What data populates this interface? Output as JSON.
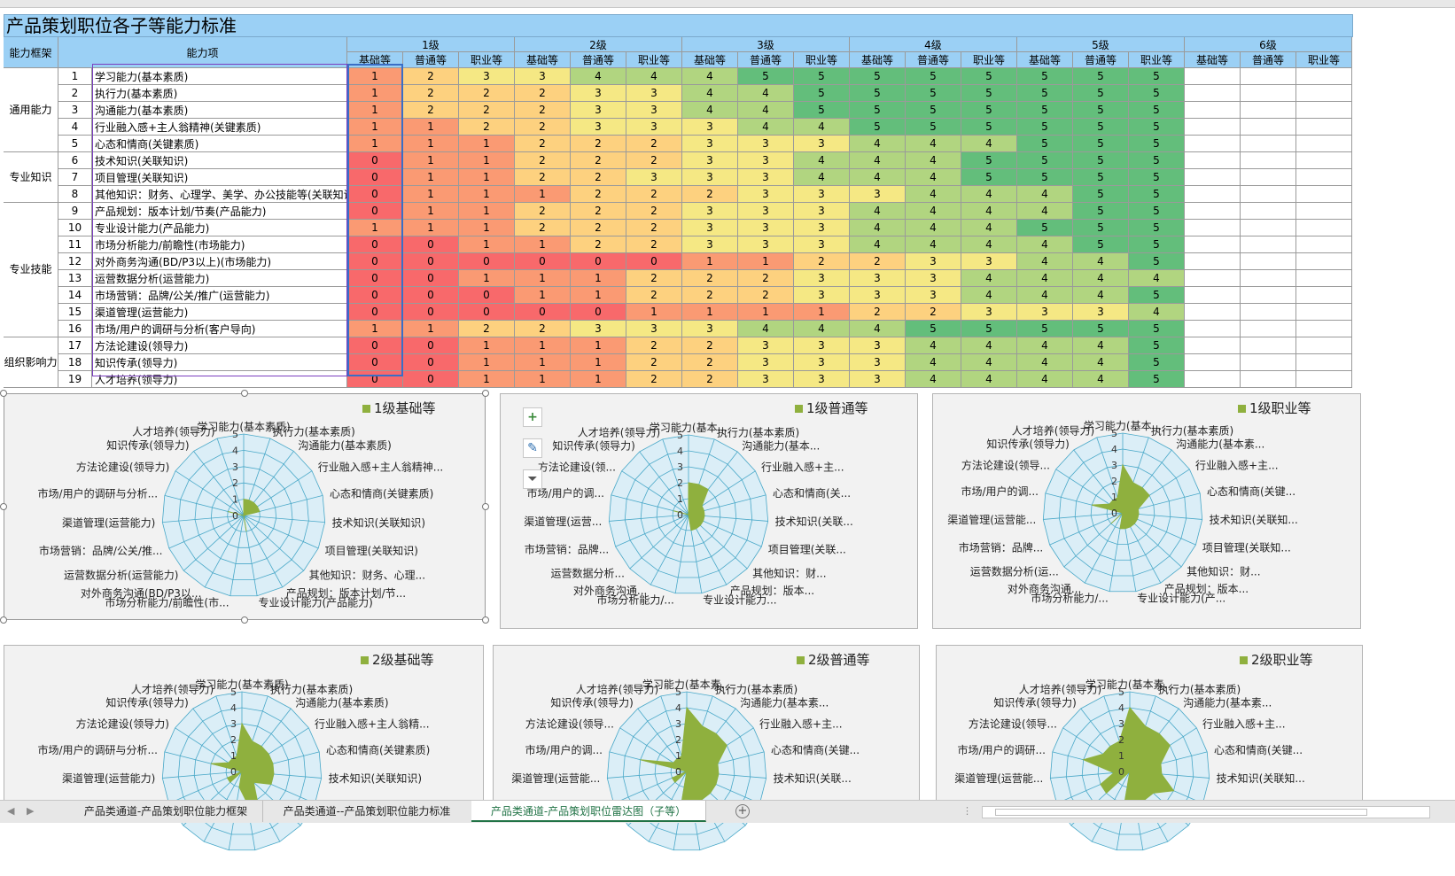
{
  "title": "产品策划职位各子等能力标准",
  "headers": {
    "framework": "能力框架",
    "item": "能力项",
    "levels": [
      "1级",
      "2级",
      "3级",
      "4级",
      "5级",
      "6级"
    ],
    "grades": [
      "基础等",
      "普通等",
      "职业等"
    ]
  },
  "groups": [
    {
      "label": "通用能力",
      "rows": 5
    },
    {
      "label": "专业知识",
      "rows": 3
    },
    {
      "label": "专业技能",
      "rows": 8
    },
    {
      "label": "组织影响力",
      "rows": 3
    }
  ],
  "rows": [
    {
      "no": "1",
      "name": "学习能力(基本素质)",
      "vals": [
        1,
        2,
        3,
        3,
        4,
        4,
        4,
        5,
        5,
        5,
        5,
        5,
        5,
        5,
        5
      ]
    },
    {
      "no": "2",
      "name": "执行力(基本素质)",
      "vals": [
        1,
        2,
        2,
        2,
        3,
        3,
        4,
        4,
        5,
        5,
        5,
        5,
        5,
        5,
        5
      ]
    },
    {
      "no": "3",
      "name": "沟通能力(基本素质)",
      "vals": [
        1,
        2,
        2,
        2,
        3,
        3,
        4,
        4,
        5,
        5,
        5,
        5,
        5,
        5,
        5
      ]
    },
    {
      "no": "4",
      "name": "行业融入感+主人翁精神(关键素质)",
      "vals": [
        1,
        1,
        2,
        2,
        3,
        3,
        3,
        4,
        4,
        5,
        5,
        5,
        5,
        5,
        5
      ]
    },
    {
      "no": "5",
      "name": "心态和情商(关键素质)",
      "vals": [
        1,
        1,
        1,
        2,
        2,
        2,
        3,
        3,
        3,
        4,
        4,
        4,
        5,
        5,
        5
      ]
    },
    {
      "no": "6",
      "name": "技术知识(关联知识)",
      "vals": [
        0,
        1,
        1,
        2,
        2,
        2,
        3,
        3,
        4,
        4,
        4,
        5,
        5,
        5,
        5
      ]
    },
    {
      "no": "7",
      "name": "项目管理(关联知识)",
      "vals": [
        0,
        1,
        1,
        2,
        2,
        3,
        3,
        3,
        4,
        4,
        4,
        5,
        5,
        5,
        5
      ]
    },
    {
      "no": "8",
      "name": "其他知识：财务、心理学、美学、办公技能等(关联知识)",
      "vals": [
        0,
        1,
        1,
        1,
        2,
        2,
        2,
        3,
        3,
        3,
        4,
        4,
        4,
        5,
        5
      ]
    },
    {
      "no": "9",
      "name": "产品规划：版本计划/节奏(产品能力)",
      "vals": [
        0,
        1,
        1,
        2,
        2,
        2,
        3,
        3,
        3,
        4,
        4,
        4,
        4,
        5,
        5
      ]
    },
    {
      "no": "10",
      "name": "专业设计能力(产品能力)",
      "vals": [
        1,
        1,
        1,
        2,
        2,
        2,
        3,
        3,
        3,
        4,
        4,
        4,
        5,
        5,
        5
      ]
    },
    {
      "no": "11",
      "name": "市场分析能力/前瞻性(市场能力)",
      "vals": [
        0,
        0,
        1,
        1,
        2,
        2,
        3,
        3,
        3,
        4,
        4,
        4,
        4,
        5,
        5
      ]
    },
    {
      "no": "12",
      "name": "对外商务沟通(BD/P3以上)(市场能力)",
      "vals": [
        0,
        0,
        0,
        0,
        0,
        0,
        1,
        1,
        2,
        2,
        3,
        3,
        4,
        4,
        5
      ]
    },
    {
      "no": "13",
      "name": "运营数据分析(运营能力)",
      "vals": [
        0,
        0,
        1,
        1,
        1,
        2,
        2,
        2,
        3,
        3,
        3,
        4,
        4,
        4,
        4
      ]
    },
    {
      "no": "14",
      "name": "市场营销：品牌/公关/推广(运营能力)",
      "vals": [
        0,
        0,
        0,
        1,
        1,
        2,
        2,
        2,
        3,
        3,
        3,
        4,
        4,
        4,
        5
      ]
    },
    {
      "no": "15",
      "name": "渠道管理(运营能力)",
      "vals": [
        0,
        0,
        0,
        0,
        0,
        1,
        1,
        1,
        1,
        2,
        2,
        3,
        3,
        3,
        4
      ]
    },
    {
      "no": "16",
      "name": "市场/用户的调研与分析(客户导向)",
      "vals": [
        1,
        1,
        2,
        2,
        3,
        3,
        3,
        4,
        4,
        4,
        5,
        5,
        5,
        5,
        5
      ]
    },
    {
      "no": "17",
      "name": "方法论建设(领导力)",
      "vals": [
        0,
        0,
        1,
        1,
        1,
        2,
        2,
        3,
        3,
        3,
        4,
        4,
        4,
        4,
        5
      ]
    },
    {
      "no": "18",
      "name": "知识传承(领导力)",
      "vals": [
        0,
        0,
        1,
        1,
        1,
        2,
        2,
        3,
        3,
        3,
        4,
        4,
        4,
        4,
        5
      ]
    },
    {
      "no": "19",
      "name": "人才培养(领导力)",
      "vals": [
        0,
        0,
        1,
        1,
        1,
        2,
        2,
        3,
        3,
        3,
        4,
        4,
        4,
        4,
        5
      ]
    }
  ],
  "colors": {
    "heat": [
      "#f8696b",
      "#fa9a73",
      "#fdd17f",
      "#f5e884",
      "#b1d580",
      "#63be7b"
    ],
    "header_bg": "#9bd0f5",
    "radar_fill": "#8fb03e",
    "radar_grid": "#49a8c8",
    "accent": "#217346"
  },
  "charts": [
    {
      "legend": "1级基础等",
      "series_index": 0,
      "labels": [
        "学习能力(基本素质)",
        "执行力(基本素质)",
        "沟通能力(基本素质)",
        "行业融入感+主人翁精神...",
        "心态和情商(关键素质)",
        "技术知识(关联知识)",
        "项目管理(关联知识)",
        "其他知识：财务、心理...",
        "产品规划：版本计划/节...",
        "专业设计能力(产品能力)",
        "市场分析能力/前瞻性(市...",
        "对外商务沟通(BD/P3以...",
        "运营数据分析(运营能力)",
        "市场营销：品牌/公关/推...",
        "渠道管理(运营能力)",
        "市场/用户的调研与分析...",
        "方法论建设(领导力)",
        "知识传承(领导力)",
        "人才培养(领导力)"
      ]
    },
    {
      "legend": "1级普通等",
      "series_index": 1,
      "labels": [
        "学习能力(基本...",
        "执行力(基本素质)",
        "沟通能力(基本...",
        "行业融入感+主...",
        "心态和情商(关...",
        "技术知识(关联...",
        "项目管理(关联...",
        "其他知识：财...",
        "产品规划：版本...",
        "专业设计能力...",
        "市场分析能力/...",
        "对外商务沟通...",
        "运营数据分析...",
        "市场营销：品牌...",
        "渠道管理(运营...",
        "市场/用户的调...",
        "方法论建设(领...",
        "知识传承(领导力)",
        "人才培养(领导力)"
      ]
    },
    {
      "legend": "1级职业等",
      "series_index": 2,
      "labels": [
        "学习能力(基本...",
        "执行力(基本素质)",
        "沟通能力(基本素...",
        "行业融入感+主...",
        "心态和情商(关键...",
        "技术知识(关联知...",
        "项目管理(关联知...",
        "其他知识：财...",
        "产品规划：版本...",
        "专业设计能力(产...",
        "市场分析能力/...",
        "对外商务沟通...",
        "运营数据分析(运...",
        "市场营销：品牌...",
        "渠道管理(运营能...",
        "市场/用户的调...",
        "方法论建设(领导...",
        "知识传承(领导力)",
        "人才培养(领导力)"
      ]
    },
    {
      "legend": "2级基础等",
      "series_index": 3,
      "labels": [
        "学习能力(基本素质)",
        "执行力(基本素质)",
        "沟通能力(基本素质)",
        "行业融入感+主人翁精...",
        "心态和情商(关键素质)",
        "技术知识(关联知识)",
        "",
        "",
        "",
        "",
        "",
        "",
        "",
        "",
        "渠道管理(运营能力)",
        "市场/用户的调研与分析...",
        "方法论建设(领导力)",
        "知识传承(领导力)",
        "人才培养(领导力)"
      ]
    },
    {
      "legend": "2级普通等",
      "series_index": 4,
      "labels": [
        "学习能力(基本素...",
        "执行力(基本素质)",
        "沟通能力(基本素...",
        "行业融入感+主...",
        "心态和情商(关键...",
        "技术知识(关联...",
        "",
        "",
        "",
        "",
        "",
        "",
        "",
        "",
        "渠道管理(运营能...",
        "市场/用户的调...",
        "方法论建设(领导...",
        "知识传承(领导力)",
        "人才培养(领导力)"
      ]
    },
    {
      "legend": "2级职业等",
      "series_index": 5,
      "labels": [
        "学习能力(基本素...",
        "执行力(基本素质)",
        "沟通能力(基本素...",
        "行业融入感+主...",
        "心态和情商(关键...",
        "技术知识(关联知...",
        "",
        "",
        "",
        "",
        "",
        "",
        "",
        "",
        "渠道管理(运营能...",
        "市场/用户的调研...",
        "方法论建设(领导...",
        "知识传承(领导力)",
        "人才培养(领导力)"
      ]
    }
  ],
  "radar_ticks": [
    "0",
    "1",
    "2",
    "3",
    "4",
    "5"
  ],
  "chart_tools": {
    "add": "+",
    "brush": "✎",
    "filter": "⏷"
  },
  "tabs": [
    {
      "label": "产品类通道-产品策划职位能力框架"
    },
    {
      "label": "产品类通道--产品策划职位能力标准"
    },
    {
      "label": "产品类通道-产品策划职位雷达图（子等）",
      "active": true
    }
  ],
  "tab_nav": {
    "prev": "◀",
    "next": "▶",
    "add": "+",
    "more": "⋮"
  }
}
